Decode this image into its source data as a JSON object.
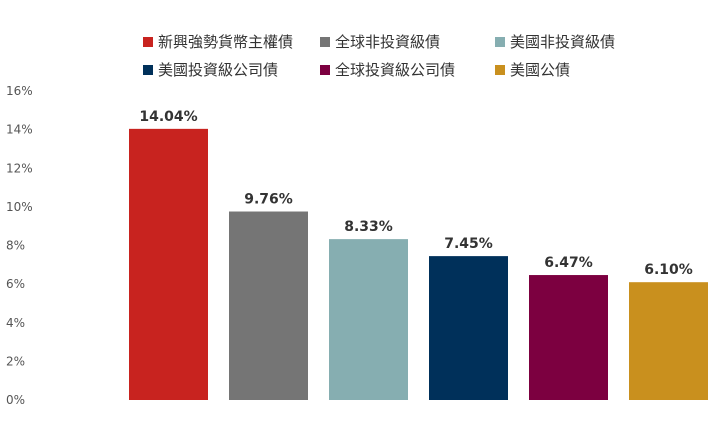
{
  "chart_data": {
    "type": "bar",
    "categories": [
      "新興強勢貨幣主權債",
      "全球非投資級債",
      "美國非投資級債",
      "美國投資級公司債",
      "全球投資級公司債",
      "美國公債"
    ],
    "values": [
      14.04,
      9.76,
      8.33,
      7.45,
      6.47,
      6.1
    ],
    "value_labels": [
      "14.04%",
      "9.76%",
      "8.33%",
      "7.45%",
      "6.47%",
      "6.10%"
    ],
    "colors": [
      "#c8231f",
      "#757575",
      "#86aeb1",
      "#00305a",
      "#7c0040",
      "#c9901e"
    ],
    "ylim": [
      0,
      16
    ],
    "yticks": [
      0,
      2,
      4,
      6,
      8,
      10,
      12,
      14,
      16
    ],
    "ytick_labels": [
      "0%",
      "2%",
      "4%",
      "6%",
      "8%",
      "10%",
      "12%",
      "14%",
      "16%"
    ],
    "grid": false,
    "legend_position": "top",
    "legend": [
      {
        "label": "新興強勢貨幣主權債",
        "color": "#c8231f"
      },
      {
        "label": "全球非投資級債",
        "color": "#757575"
      },
      {
        "label": "美國非投資級債",
        "color": "#86aeb1"
      },
      {
        "label": "美國投資級公司債",
        "color": "#00305a"
      },
      {
        "label": "全球投資級公司債",
        "color": "#7c0040"
      },
      {
        "label": "美國公債",
        "color": "#c9901e"
      }
    ]
  }
}
